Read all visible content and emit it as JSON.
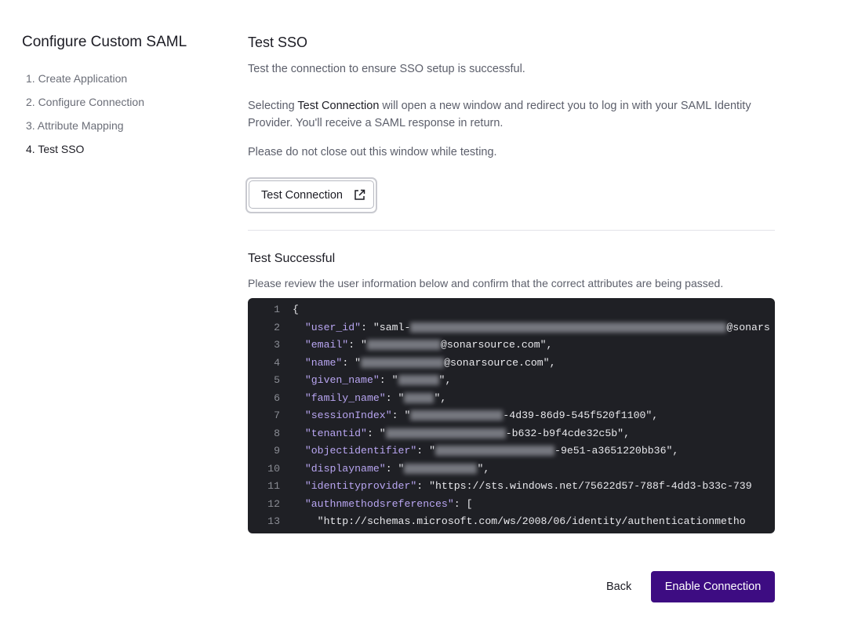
{
  "sidebar": {
    "title": "Configure Custom SAML",
    "steps": [
      "1. Create Application",
      "2. Configure Connection",
      "3. Attribute Mapping",
      "4. Test SSO"
    ]
  },
  "main": {
    "title": "Test SSO",
    "subtitle": "Test the connection to ensure SSO setup is successful.",
    "description": {
      "before": "Selecting ",
      "emphasis": "Test Connection",
      "after": " will open a new window and redirect you to log in with your SAML Identity Provider. You'll receive a SAML response in return."
    },
    "note": "Please do not close out this window while testing.",
    "test_button": "Test Connection",
    "result": {
      "title": "Test Successful",
      "message": "Please review the user information below and confirm that the correct attributes are being passed."
    },
    "code": {
      "lines": [
        {
          "num": "1",
          "text": "{"
        },
        {
          "num": "2",
          "key": "  \"user_id\"",
          "text": ": \"saml-",
          "tail": "@sonars"
        },
        {
          "num": "3",
          "key": "  \"email\"",
          "text": ": \"",
          "tail": "@sonarsource.com\","
        },
        {
          "num": "4",
          "key": "  \"name\"",
          "text": ": \"",
          "tail": "@sonarsource.com\","
        },
        {
          "num": "5",
          "key": "  \"given_name\"",
          "text": ": \"",
          "tail": "\","
        },
        {
          "num": "6",
          "key": "  \"family_name\"",
          "text": ": \"",
          "tail": "\","
        },
        {
          "num": "7",
          "key": "  \"sessionIndex\"",
          "text": ": \"",
          "tail": "-4d39-86d9-545f520f1100\","
        },
        {
          "num": "8",
          "key": "  \"tenantid\"",
          "text": ": \"",
          "tail": "-b632-b9f4cde32c5b\","
        },
        {
          "num": "9",
          "key": "  \"objectidentifier\"",
          "text": ": \"",
          "tail": "-9e51-a3651220bb36\","
        },
        {
          "num": "10",
          "key": "  \"displayname\"",
          "text": ": \"",
          "tail": "\","
        },
        {
          "num": "11",
          "key": "  \"identityprovider\"",
          "text": ": \"https://sts.windows.net/75622d57-788f-4dd3-b33c-739"
        },
        {
          "num": "12",
          "key": "  \"authnmethodsreferences\"",
          "text": ": ["
        },
        {
          "num": "13",
          "text": "    \"http://schemas.microsoft.com/ws/2008/06/identity/authenticationmetho"
        }
      ]
    }
  },
  "footer": {
    "back": "Back",
    "enable": "Enable Connection"
  }
}
